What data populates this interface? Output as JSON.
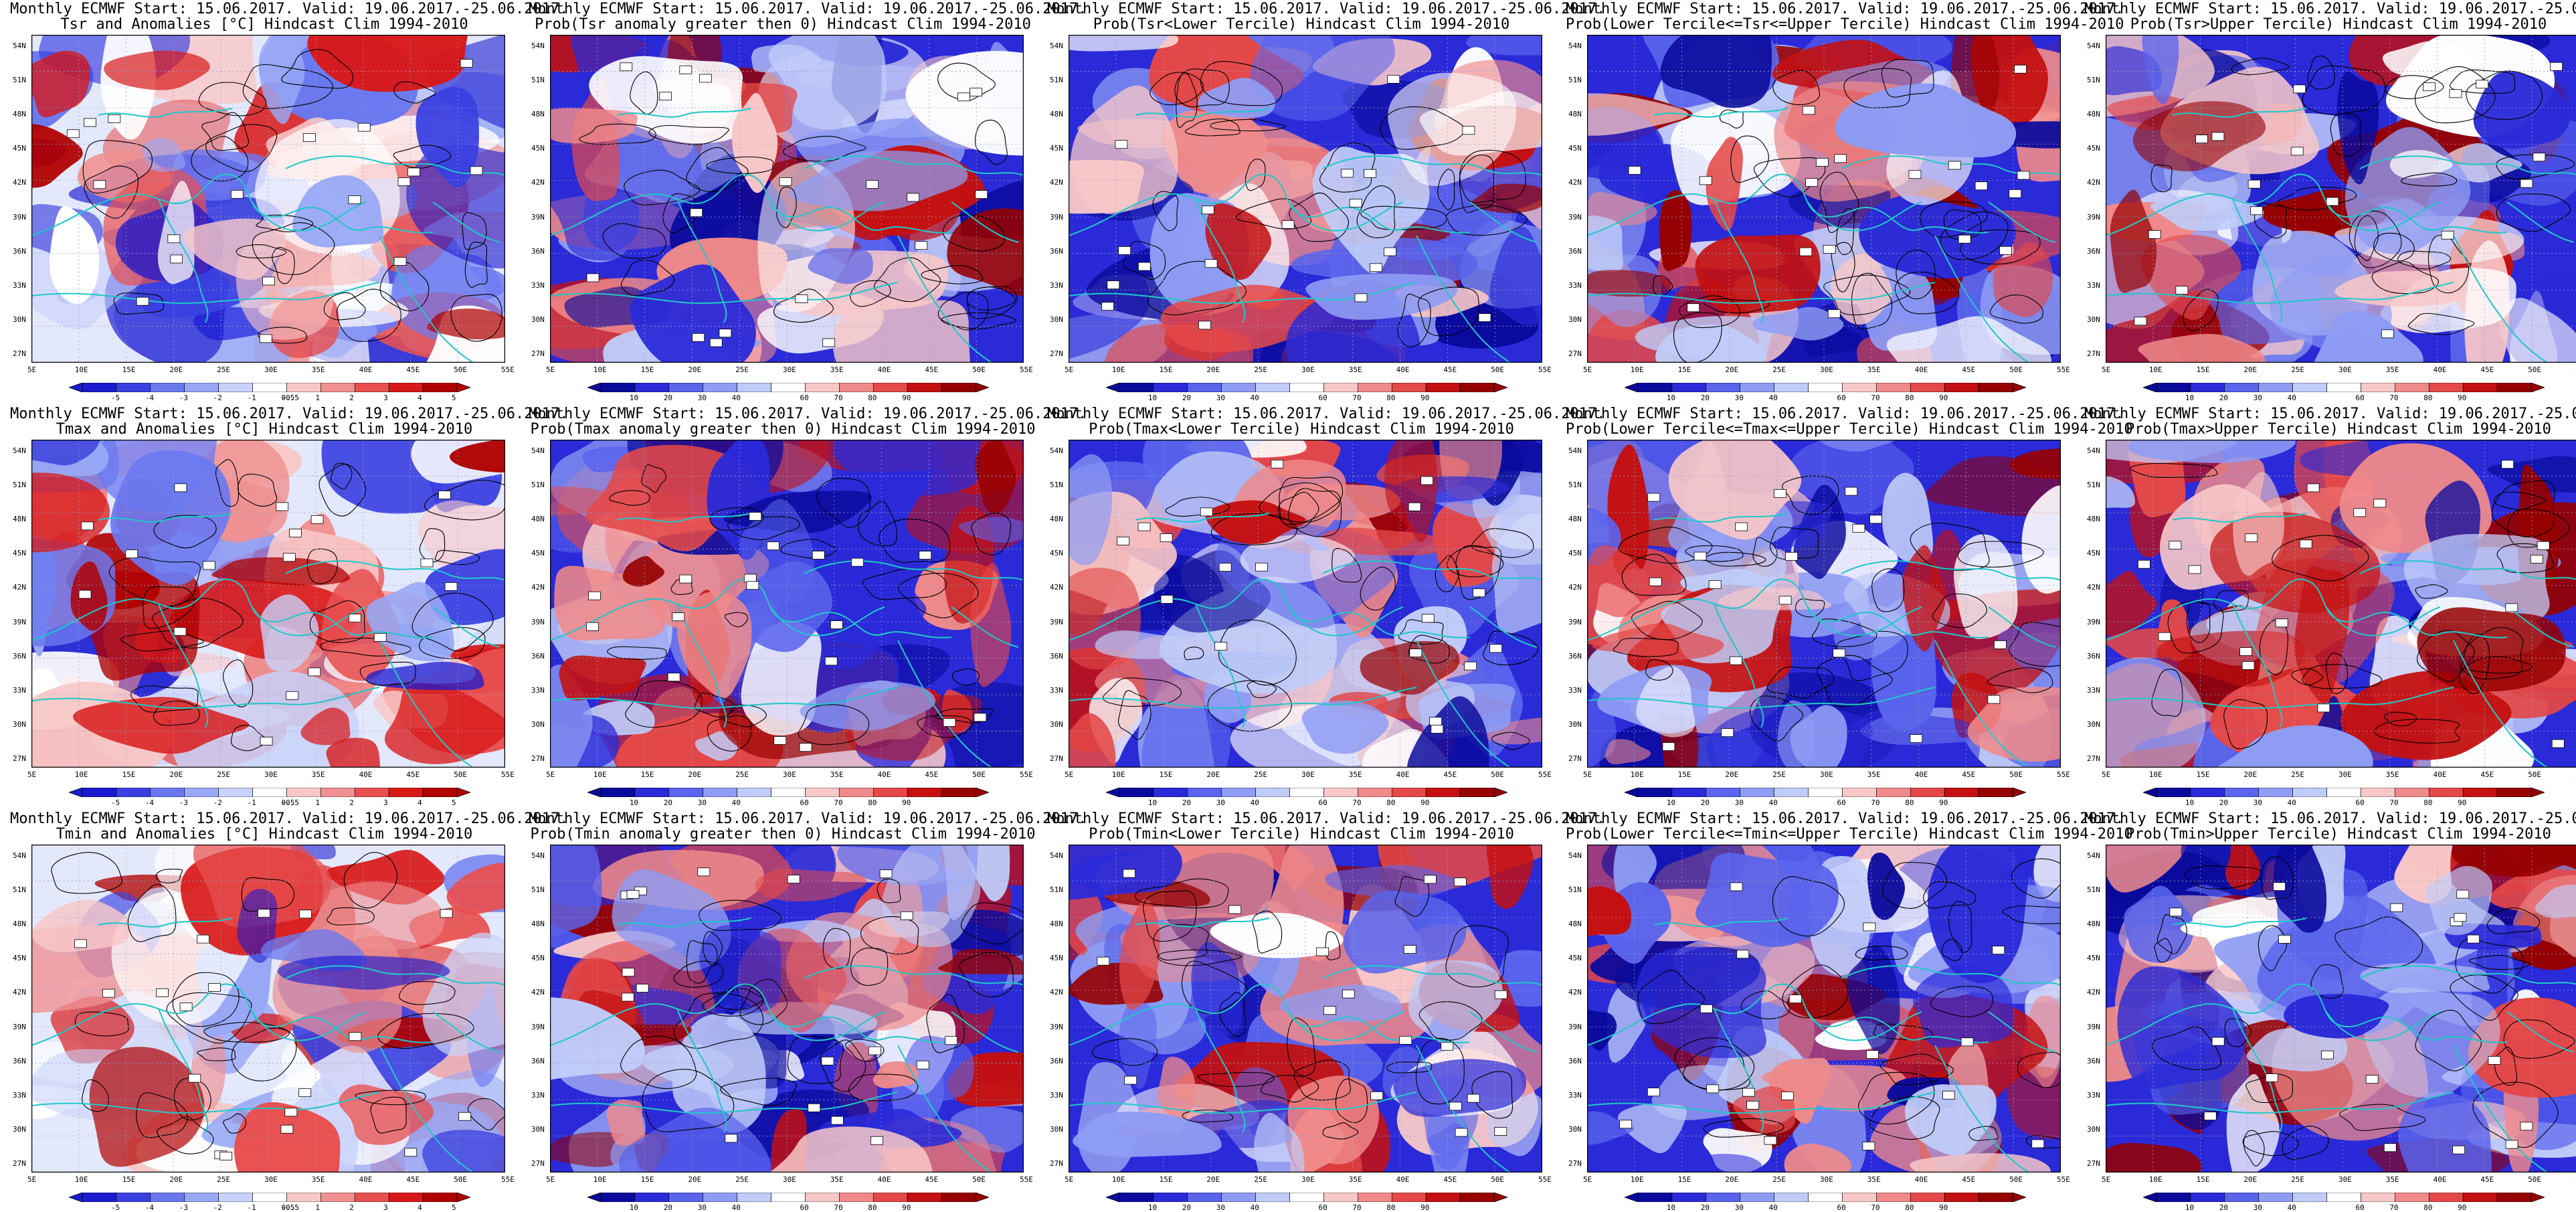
{
  "figure": {
    "title_line1": "Monthly ECMWF Start: 15.06.2017. Valid: 19.06.2017.-25.06.2017.",
    "lat_labels": [
      "54N",
      "51N",
      "48N",
      "45N",
      "42N",
      "39N",
      "36N",
      "33N",
      "30N",
      "27N"
    ],
    "lon_labels": [
      "5E",
      "10E",
      "15E",
      "20E",
      "25E",
      "30E",
      "35E",
      "40E",
      "45E",
      "50E",
      "55E"
    ],
    "colors": {
      "anom_neg": [
        "#1a1ad0",
        "#3a40e0",
        "#6a78f0",
        "#98a8f6",
        "#c8d2fa",
        "#ffffff"
      ],
      "anom_pos": [
        "#ffffff",
        "#f8c8c8",
        "#f09090",
        "#e85050",
        "#d81818",
        "#b00000"
      ],
      "prob": [
        "#0a0a9c",
        "#2a2ad8",
        "#5a64ec",
        "#8e9cf4",
        "#c0ccf8",
        "#ffffff",
        "#f8c8c8",
        "#f08a8a",
        "#e44848",
        "#c41010",
        "#960000"
      ],
      "coast": "#20c8c8",
      "contour": "#000000"
    }
  },
  "rows": [
    {
      "variable": "Tsr",
      "panels": [
        {
          "subtitle": "Tsr and Anomalies [°C] Hindcast Clim 1994-2010",
          "kind": "anom",
          "cb_labels": [
            "-5",
            "-4",
            "-3",
            "-2",
            "-1",
            "-0.5",
            "0.5",
            "1",
            "2",
            "3",
            "4",
            "5"
          ]
        },
        {
          "subtitle": "Prob(Tsr anomaly greater then 0) Hindcast Clim 1994-2010",
          "kind": "prob",
          "cb_labels": [
            "10",
            "20",
            "30",
            "40",
            "60",
            "70",
            "80",
            "90"
          ]
        },
        {
          "subtitle": "Prob(Tsr<Lower Tercile) Hindcast Clim 1994-2010",
          "kind": "prob",
          "cb_labels": [
            "10",
            "20",
            "30",
            "40",
            "60",
            "70",
            "80",
            "90"
          ]
        },
        {
          "subtitle": "Prob(Lower Tercile<=Tsr<=Upper Tercile) Hindcast Clim 1994-2010",
          "kind": "prob",
          "cb_labels": [
            "10",
            "20",
            "30",
            "40",
            "60",
            "70",
            "80",
            "90"
          ]
        },
        {
          "subtitle": "Prob(Tsr>Upper Tercile) Hindcast Clim 1994-2010",
          "kind": "prob",
          "cb_labels": [
            "10",
            "20",
            "30",
            "40",
            "60",
            "70",
            "80",
            "90"
          ]
        }
      ]
    },
    {
      "variable": "Tmax",
      "panels": [
        {
          "subtitle": "Tmax and Anomalies [°C] Hindcast Clim 1994-2010",
          "kind": "anom",
          "cb_labels": [
            "-5",
            "-4",
            "-3",
            "-2",
            "-1",
            "-0.5",
            "0.5",
            "1",
            "2",
            "3",
            "4",
            "5"
          ]
        },
        {
          "subtitle": "Prob(Tmax anomaly greater then 0) Hindcast Clim 1994-2010",
          "kind": "prob",
          "cb_labels": [
            "10",
            "20",
            "30",
            "40",
            "60",
            "70",
            "80",
            "90"
          ]
        },
        {
          "subtitle": "Prob(Tmax<Lower Tercile) Hindcast Clim 1994-2010",
          "kind": "prob",
          "cb_labels": [
            "10",
            "20",
            "30",
            "40",
            "60",
            "70",
            "80",
            "90"
          ]
        },
        {
          "subtitle": "Prob(Lower Tercile<=Tmax<=Upper Tercile) Hindcast Clim 1994-2010",
          "kind": "prob",
          "cb_labels": [
            "10",
            "20",
            "30",
            "40",
            "60",
            "70",
            "80",
            "90"
          ]
        },
        {
          "subtitle": "Prob(Tmax>Upper Tercile) Hindcast Clim 1994-2010",
          "kind": "prob",
          "cb_labels": [
            "10",
            "20",
            "30",
            "40",
            "60",
            "70",
            "80",
            "90"
          ]
        }
      ]
    },
    {
      "variable": "Tmin",
      "panels": [
        {
          "subtitle": "Tmin and Anomalies [°C] Hindcast Clim 1994-2010",
          "kind": "anom",
          "cb_labels": [
            "-5",
            "-4",
            "-3",
            "-2",
            "-1",
            "-0.5",
            "0.5",
            "1",
            "2",
            "3",
            "4",
            "5"
          ]
        },
        {
          "subtitle": "Prob(Tmin anomaly greater then 0) Hindcast Clim 1994-2010",
          "kind": "prob",
          "cb_labels": [
            "10",
            "20",
            "30",
            "40",
            "60",
            "70",
            "80",
            "90"
          ]
        },
        {
          "subtitle": "Prob(Tmin<Lower Tercile) Hindcast Clim 1994-2010",
          "kind": "prob",
          "cb_labels": [
            "10",
            "20",
            "30",
            "40",
            "60",
            "70",
            "80",
            "90"
          ]
        },
        {
          "subtitle": "Prob(Lower Tercile<=Tmin<=Upper Tercile) Hindcast Clim 1994-2010",
          "kind": "prob",
          "cb_labels": [
            "10",
            "20",
            "30",
            "40",
            "60",
            "70",
            "80",
            "90"
          ]
        },
        {
          "subtitle": "Prob(Tmin>Upper Tercile) Hindcast Clim 1994-2010",
          "kind": "prob",
          "cb_labels": [
            "10",
            "20",
            "30",
            "40",
            "60",
            "70",
            "80",
            "90"
          ]
        }
      ]
    }
  ]
}
